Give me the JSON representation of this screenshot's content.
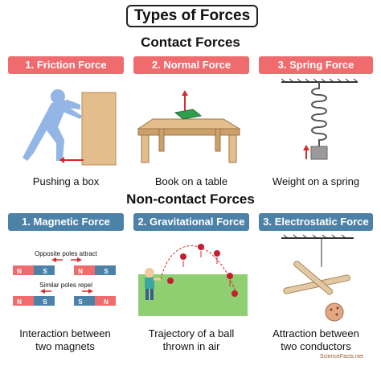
{
  "title": "Types of Forces",
  "contact": {
    "heading": "Contact Forces",
    "items": [
      {
        "label": "1. Friction Force",
        "caption": "Pushing a box"
      },
      {
        "label": "2. Normal Force",
        "caption": "Book on a table"
      },
      {
        "label": "3. Spring Force",
        "caption": "Weight on a spring"
      }
    ]
  },
  "noncontact": {
    "heading": "Non-contact Forces",
    "items": [
      {
        "label": "1. Magnetic Force",
        "caption_line1": "Interaction between",
        "caption_line2": "two magnets"
      },
      {
        "label": "2. Gravitational Force",
        "caption_line1": "Trajectory of a ball",
        "caption_line2": "thrown in air"
      },
      {
        "label": "3. Electrostatic Force",
        "caption_line1": "Attraction between",
        "caption_line2": "two conductors"
      }
    ]
  },
  "magnets": {
    "opposite_label": "Opposite poles attract",
    "similar_label": "Similar poles repel",
    "pole_n": "N",
    "pole_s": "S"
  },
  "brand": "ScienceFacts.net",
  "colors": {
    "red_tag": "#ef6b6e",
    "blue_tag": "#4d82a8",
    "arrow": "#d62a2a"
  }
}
